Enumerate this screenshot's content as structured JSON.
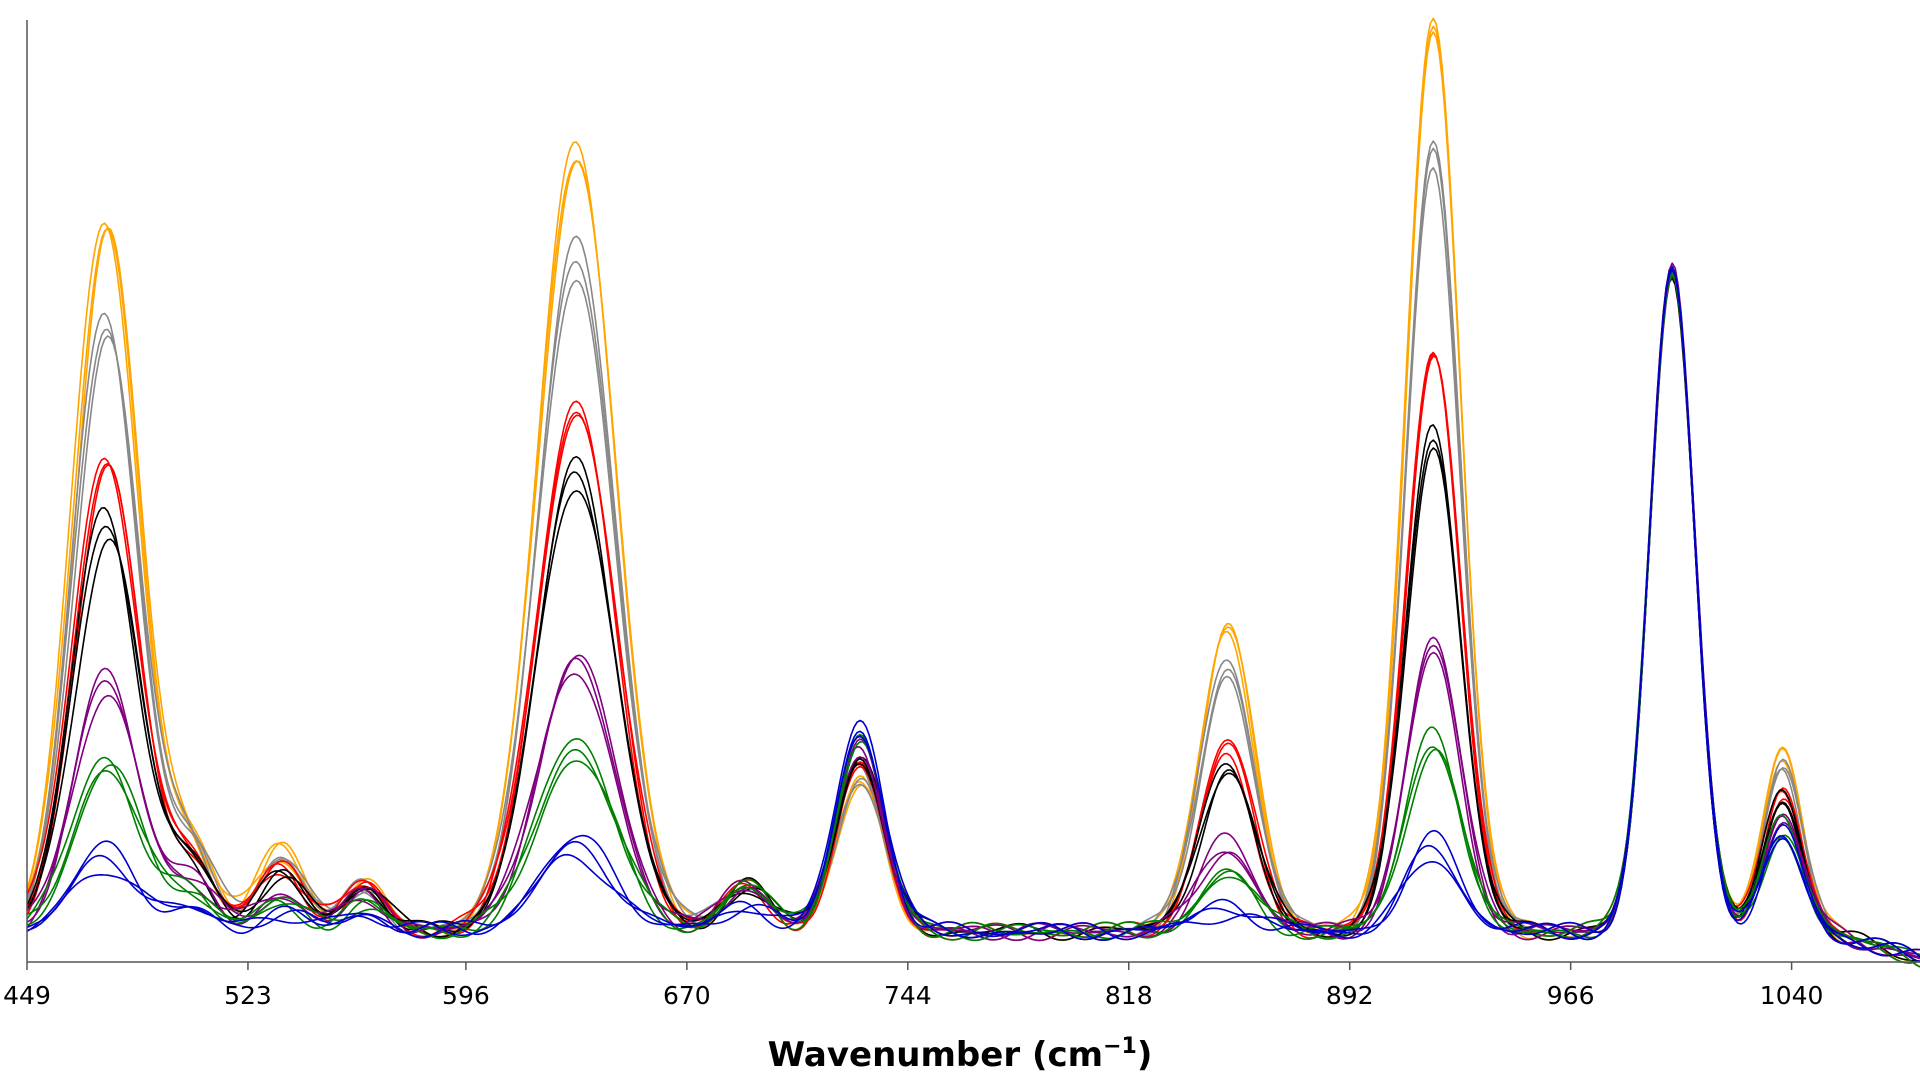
{
  "chart_data": {
    "type": "line",
    "title": "",
    "xlabel": "Wavenumber (cm",
    "xlabel_sup": "−1",
    "xlabel_close": ")",
    "ylabel": "",
    "xlim": [
      449,
      1083
    ],
    "ylim": [
      0,
      1.0
    ],
    "x_ticks": [
      449,
      523,
      596,
      670,
      744,
      818,
      892,
      966,
      1040
    ],
    "y_ticks_shown": false,
    "legend": "none",
    "grid": false,
    "peaks": [
      {
        "center": 475,
        "width": 11
      },
      {
        "center": 504,
        "width": 8
      },
      {
        "center": 534,
        "width": 8
      },
      {
        "center": 562,
        "width": 7
      },
      {
        "center": 633,
        "width": 13
      },
      {
        "center": 690,
        "width": 8
      },
      {
        "center": 728,
        "width": 8
      },
      {
        "center": 851,
        "width": 9
      },
      {
        "center": 920,
        "width": 9
      },
      {
        "center": 1000,
        "width": 7.5
      },
      {
        "center": 1037,
        "width": 6.5
      }
    ],
    "series": [
      {
        "color": "#FFA500",
        "values": [
          0.78,
          0.09,
          0.09,
          0.05,
          0.86,
          0.05,
          0.17,
          0.34,
          1.0,
          0.72,
          0.2
        ]
      },
      {
        "color": "#FFA500",
        "values": [
          0.77,
          0.08,
          0.09,
          0.05,
          0.85,
          0.05,
          0.16,
          0.33,
          0.99,
          0.72,
          0.2
        ]
      },
      {
        "color": "#FFA500",
        "values": [
          0.76,
          0.09,
          0.08,
          0.05,
          0.84,
          0.05,
          0.16,
          0.32,
          0.98,
          0.72,
          0.19
        ]
      },
      {
        "color": "#888888",
        "values": [
          0.67,
          0.09,
          0.08,
          0.05,
          0.75,
          0.05,
          0.18,
          0.3,
          0.86,
          0.72,
          0.18
        ]
      },
      {
        "color": "#888888",
        "values": [
          0.66,
          0.08,
          0.08,
          0.05,
          0.73,
          0.05,
          0.17,
          0.29,
          0.85,
          0.72,
          0.18
        ]
      },
      {
        "color": "#888888",
        "values": [
          0.65,
          0.08,
          0.08,
          0.05,
          0.71,
          0.05,
          0.17,
          0.28,
          0.83,
          0.72,
          0.17
        ]
      },
      {
        "color": "#FF0000",
        "values": [
          0.52,
          0.08,
          0.07,
          0.05,
          0.58,
          0.05,
          0.18,
          0.21,
          0.64,
          0.72,
          0.16
        ]
      },
      {
        "color": "#FF0000",
        "values": [
          0.51,
          0.07,
          0.07,
          0.05,
          0.57,
          0.05,
          0.18,
          0.2,
          0.63,
          0.72,
          0.15
        ]
      },
      {
        "color": "#FF0000",
        "values": [
          0.5,
          0.07,
          0.07,
          0.05,
          0.56,
          0.05,
          0.18,
          0.19,
          0.62,
          0.72,
          0.15
        ]
      },
      {
        "color": "#000000",
        "values": [
          0.46,
          0.07,
          0.06,
          0.05,
          0.51,
          0.05,
          0.19,
          0.19,
          0.55,
          0.72,
          0.15
        ]
      },
      {
        "color": "#000000",
        "values": [
          0.45,
          0.07,
          0.06,
          0.05,
          0.5,
          0.05,
          0.19,
          0.18,
          0.54,
          0.72,
          0.14
        ]
      },
      {
        "color": "#000000",
        "values": [
          0.43,
          0.06,
          0.06,
          0.05,
          0.49,
          0.05,
          0.19,
          0.17,
          0.53,
          0.72,
          0.14
        ]
      },
      {
        "color": "#800080",
        "values": [
          0.28,
          0.05,
          0.04,
          0.04,
          0.3,
          0.05,
          0.2,
          0.1,
          0.32,
          0.72,
          0.13
        ]
      },
      {
        "color": "#800080",
        "values": [
          0.27,
          0.05,
          0.04,
          0.04,
          0.29,
          0.05,
          0.2,
          0.09,
          0.31,
          0.72,
          0.12
        ]
      },
      {
        "color": "#800080",
        "values": [
          0.26,
          0.05,
          0.04,
          0.04,
          0.28,
          0.05,
          0.2,
          0.09,
          0.3,
          0.72,
          0.12
        ]
      },
      {
        "color": "#008000",
        "values": [
          0.19,
          0.04,
          0.03,
          0.03,
          0.21,
          0.05,
          0.21,
          0.07,
          0.22,
          0.72,
          0.12
        ]
      },
      {
        "color": "#008000",
        "values": [
          0.18,
          0.04,
          0.03,
          0.03,
          0.2,
          0.05,
          0.21,
          0.06,
          0.21,
          0.72,
          0.11
        ]
      },
      {
        "color": "#008000",
        "values": [
          0.18,
          0.04,
          0.03,
          0.03,
          0.19,
          0.05,
          0.21,
          0.06,
          0.2,
          0.72,
          0.11
        ]
      },
      {
        "color": "#0000CD",
        "values": [
          0.09,
          0.02,
          0.02,
          0.02,
          0.1,
          0.03,
          0.23,
          0.03,
          0.1,
          0.72,
          0.11
        ]
      },
      {
        "color": "#0000CD",
        "values": [
          0.08,
          0.02,
          0.02,
          0.02,
          0.09,
          0.03,
          0.22,
          0.03,
          0.09,
          0.72,
          0.1
        ]
      },
      {
        "color": "#0000CD",
        "values": [
          0.07,
          0.02,
          0.02,
          0.02,
          0.08,
          0.03,
          0.22,
          0.02,
          0.08,
          0.72,
          0.1
        ]
      }
    ]
  }
}
